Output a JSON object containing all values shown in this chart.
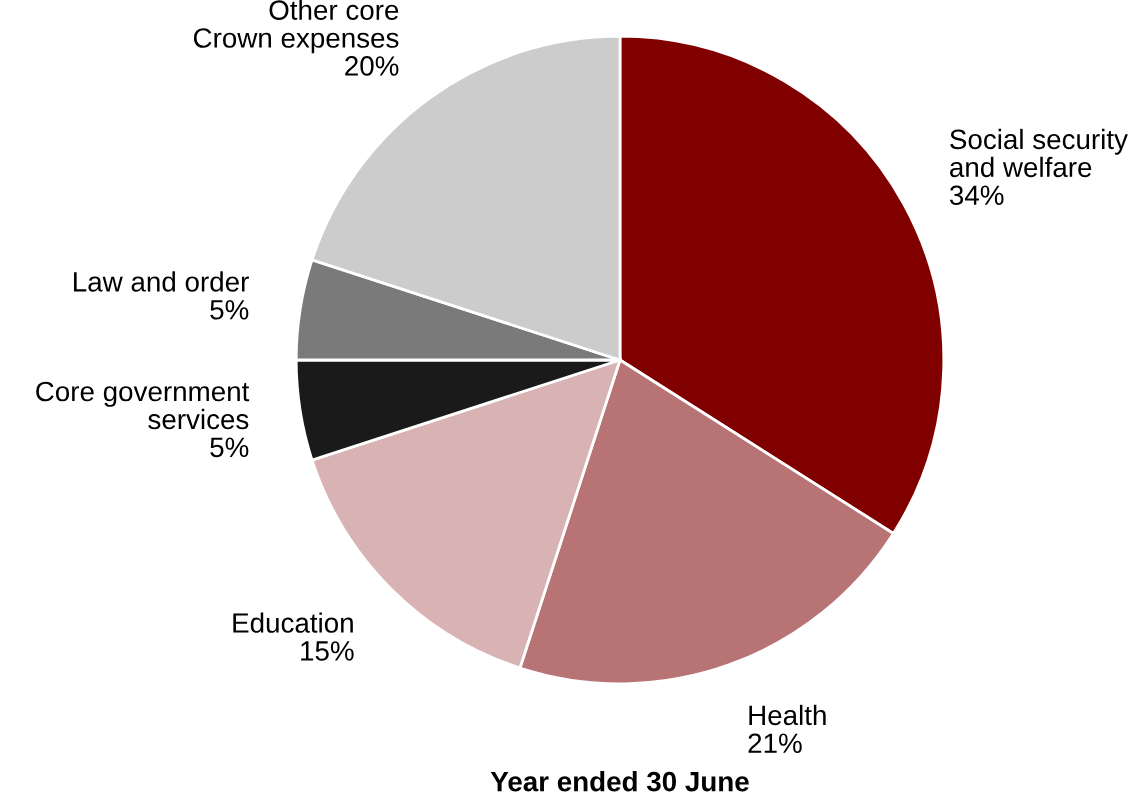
{
  "chart_data": {
    "type": "pie",
    "xlabel": "Year ended 30 June",
    "categories": [
      "Social security\nand welfare",
      "Health",
      "Education",
      "Core government\nservices",
      "Law and order",
      "Other core\nCrown expenses"
    ],
    "values": [
      34,
      21,
      15,
      5,
      5,
      20
    ],
    "colors": [
      "#800000",
      "#b87474",
      "#d9b3b3",
      "#1a1a1a",
      "#7a7a7a",
      "#cccccc"
    ],
    "value_labels": [
      "34%",
      "21%",
      "15%",
      "5%",
      "5%",
      "20%"
    ]
  }
}
